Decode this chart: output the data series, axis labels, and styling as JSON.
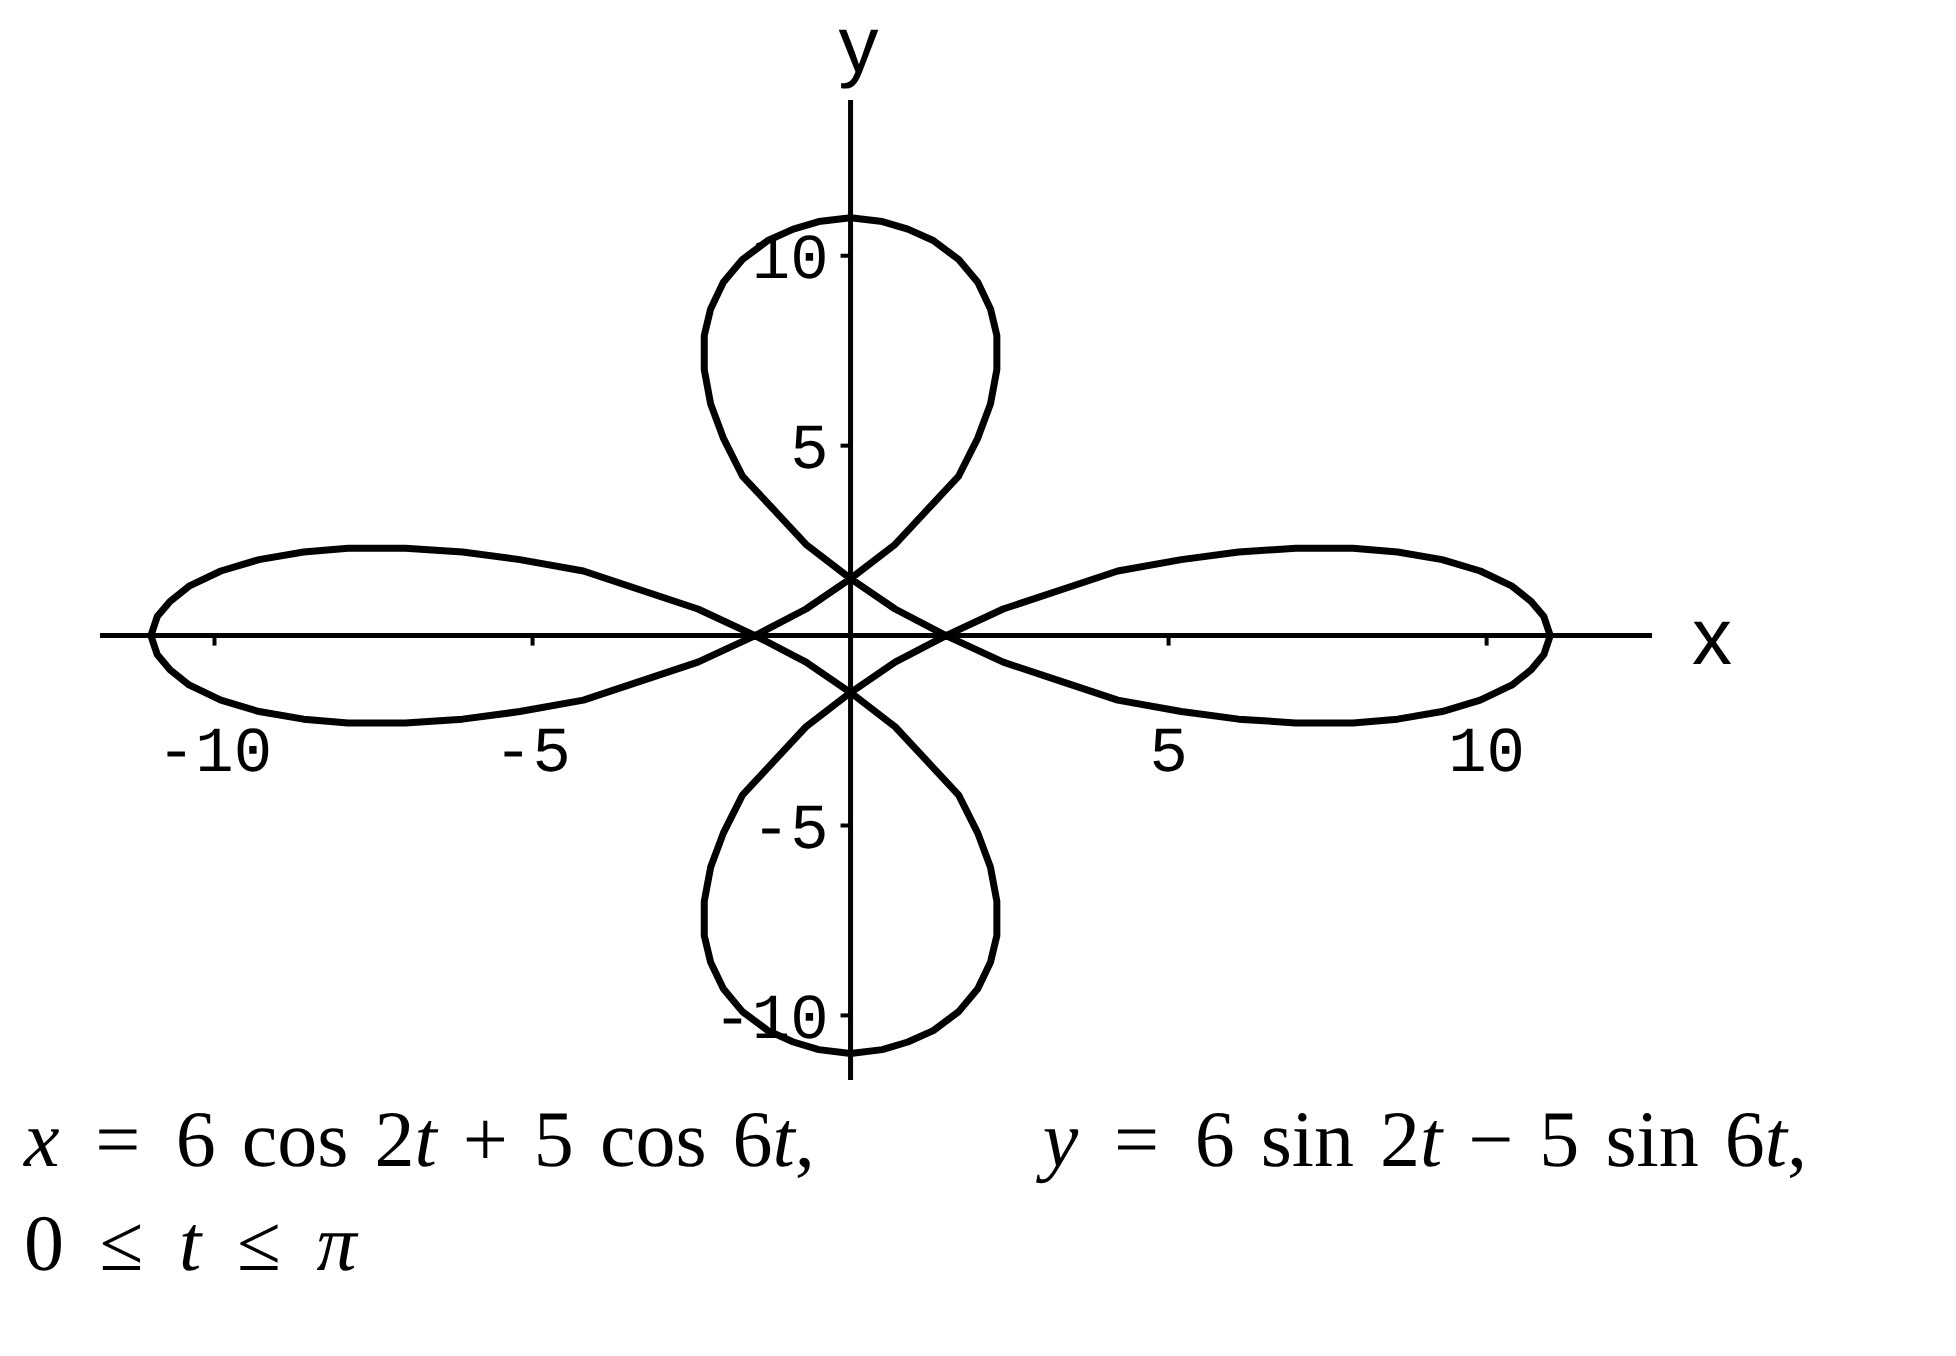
{
  "chart_data": {
    "type": "line",
    "xlabel": "x",
    "ylabel": "y",
    "annotations": [
      "x = 6 cos 2t + 5 cos 6t,   y = 6 sin 2t − 5 sin 6t,",
      "0 ≤ t ≤ π"
    ],
    "x": [
      11.0,
      10.9,
      10.7,
      10.4,
      9.9,
      9.3,
      8.6,
      7.9,
      7.0,
      6.1,
      5.2,
      4.2,
      3.3,
      2.4,
      1.5,
      0.7,
      0.0,
      -0.7,
      -1.2,
      -1.7,
      -2.0,
      -2.2,
      -2.3,
      -2.3,
      -2.2,
      -2.0,
      -1.7,
      -1.3,
      -0.9,
      -0.5,
      0.0,
      0.5,
      0.9,
      1.3,
      1.7,
      2.0,
      2.2,
      2.3,
      2.3,
      2.2,
      2.0,
      1.7,
      1.2,
      0.7,
      0.0,
      -0.7,
      -1.5,
      -2.4,
      -3.3,
      -4.2,
      -5.2,
      -6.1,
      -7.0,
      -7.9,
      -8.6,
      -9.3,
      -9.9,
      -10.4,
      -10.7,
      -10.9,
      -11.0,
      -10.9,
      -10.7,
      -10.4,
      -9.9,
      -9.3,
      -8.6,
      -7.9,
      -7.0,
      -6.1,
      -5.2,
      -4.2,
      -3.3,
      -2.4,
      -1.5,
      -0.7,
      0.0,
      0.7,
      1.2,
      1.7,
      2.0,
      2.2,
      2.3,
      2.3,
      2.2,
      2.0,
      1.7,
      1.3,
      0.9,
      0.5,
      0.0,
      -0.5,
      -0.9,
      -1.3,
      -1.7,
      -2.0,
      -2.2,
      -2.3,
      -2.3,
      -2.2,
      -2.0,
      -1.7,
      -1.2,
      -0.7,
      0.0,
      0.7,
      1.5,
      2.4,
      3.3,
      4.2,
      5.2,
      6.1,
      7.0,
      7.9,
      8.6,
      9.3,
      9.9,
      10.4,
      10.7,
      10.9,
      11.0,
      10.9,
      10.7,
      10.4
    ],
    "values": [
      0.0,
      -0.5,
      -0.9,
      -1.3,
      -1.7,
      -2.0,
      -2.2,
      -2.3,
      -2.3,
      -2.2,
      -2.0,
      -1.7,
      -1.2,
      -0.7,
      0.0,
      0.7,
      1.5,
      2.4,
      3.3,
      4.2,
      5.2,
      6.1,
      7.0,
      7.9,
      8.6,
      9.3,
      9.9,
      10.4,
      10.7,
      10.9,
      11.0,
      10.9,
      10.7,
      10.4,
      9.9,
      9.3,
      8.6,
      7.9,
      7.0,
      6.1,
      5.2,
      4.2,
      3.3,
      2.4,
      1.5,
      0.7,
      0.0,
      -0.7,
      -1.2,
      -1.7,
      -2.0,
      -2.2,
      -2.3,
      -2.3,
      -2.2,
      -2.0,
      -1.7,
      -1.3,
      -0.9,
      -0.5,
      0.0,
      0.5,
      0.9,
      1.3,
      1.7,
      2.0,
      2.2,
      2.3,
      2.3,
      2.2,
      2.0,
      1.7,
      1.2,
      0.7,
      0.0,
      -0.7,
      -1.5,
      -2.4,
      -3.3,
      -4.2,
      -5.2,
      -6.1,
      -7.0,
      -7.9,
      -8.6,
      -9.3,
      -9.9,
      -10.4,
      -10.7,
      -10.9,
      -11.0,
      -10.9,
      -10.7,
      -10.4,
      -9.9,
      -9.3,
      -8.6,
      -7.9,
      -7.0,
      -6.1,
      -5.2,
      -4.2,
      -3.3,
      -2.4,
      -1.5,
      -0.7,
      0.0,
      0.7,
      1.2,
      1.7,
      2.0,
      2.2,
      2.3,
      2.3,
      2.2,
      2.0,
      1.7,
      1.3,
      0.9,
      0.5,
      0.0,
      -0.5,
      -0.9,
      -1.3
    ],
    "color": "#000000",
    "xlim": [
      -11.8,
      12.6
    ],
    "ylim": [
      -11.7,
      14.1
    ],
    "xticks": [
      -10,
      -5,
      5,
      10
    ],
    "yticks": [
      -10,
      -5,
      5,
      10
    ]
  }
}
